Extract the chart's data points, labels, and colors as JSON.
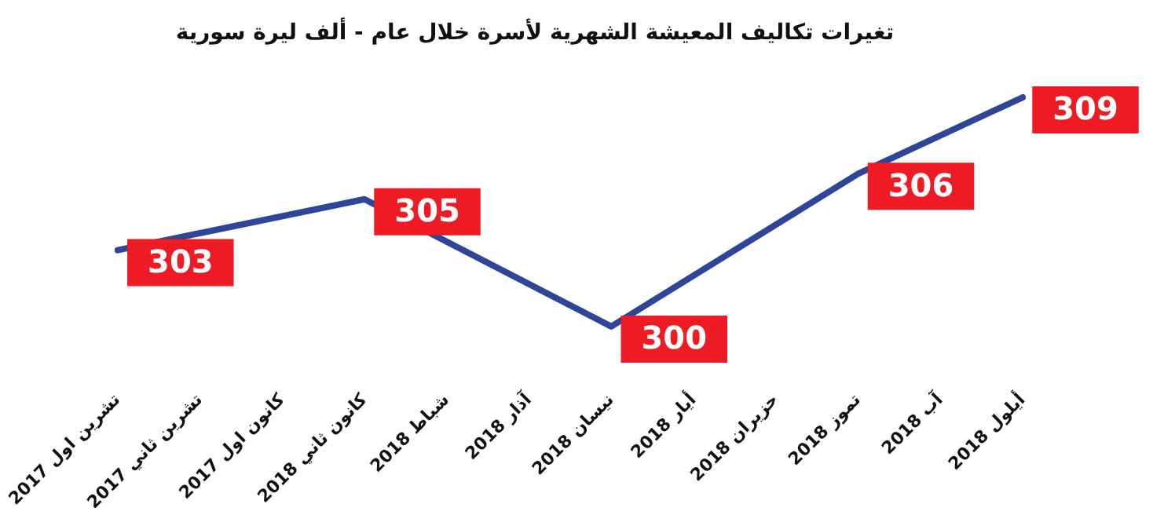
{
  "chart_data": {
    "type": "line",
    "title": "تغيرات تكاليف المعيشة الشهرية لأسرة خلال عام - ألف ليرة سورية",
    "categories": [
      "تشرين اول 2017",
      "تشرين ثاني 2017",
      "كانون اول 2017",
      "كانون ثاني 2018",
      "شباط 2018",
      "آذار 2018",
      "نيسان 2018",
      "أيار 2018",
      "حزيران 2018",
      "تموز 2018",
      "آب 2018",
      "أيلول 2018"
    ],
    "series": [
      {
        "color": "#2e4598",
        "values": [
          303,
          null,
          null,
          305,
          null,
          null,
          300,
          null,
          null,
          306,
          null,
          309
        ]
      }
    ],
    "data_labels": true,
    "grid": false,
    "legend": false,
    "marker": "none",
    "line_style": "solid",
    "tick_labels": "x"
  }
}
